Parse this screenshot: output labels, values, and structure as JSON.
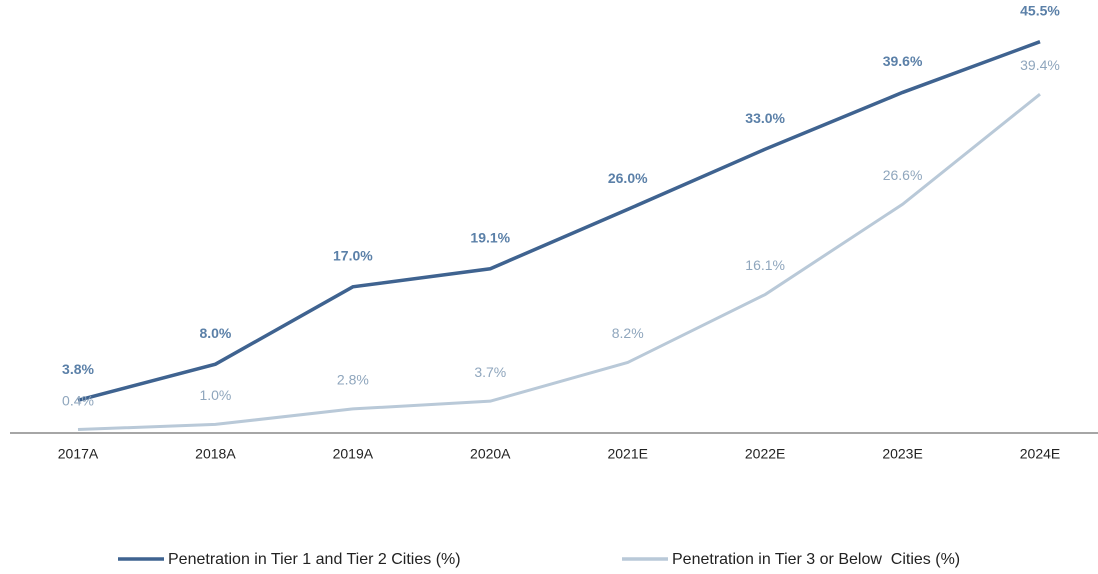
{
  "chart_data": {
    "type": "line",
    "categories": [
      "2017A",
      "2018A",
      "2019A",
      "2020A",
      "2021E",
      "2022E",
      "2023E",
      "2024E"
    ],
    "series": [
      {
        "name": "Penetration in Tier 1 and Tier 2 Cities (%)",
        "color": "#3f6390",
        "values": [
          3.8,
          8.0,
          17.0,
          19.1,
          26.0,
          33.0,
          39.6,
          45.5
        ],
        "value_labels": [
          "3.8%",
          "8.0%",
          "17.0%",
          "19.1%",
          "26.0%",
          "33.0%",
          "39.6%",
          "45.5%"
        ]
      },
      {
        "name": "Penetration in Tier 3 or Below  Cities (%)",
        "color": "#b9c9d8",
        "values": [
          0.4,
          1.0,
          2.8,
          3.7,
          8.2,
          16.1,
          26.6,
          39.4
        ],
        "value_labels": [
          "0.4%",
          "1.0%",
          "2.8%",
          "3.7%",
          "8.2%",
          "16.1%",
          "26.6%",
          "39.4%"
        ]
      }
    ],
    "ylim": [
      0,
      50
    ]
  }
}
